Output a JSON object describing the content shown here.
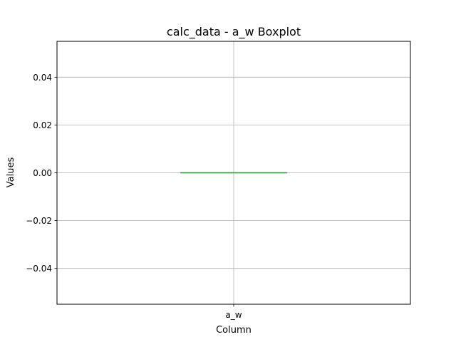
{
  "chart_data": {
    "type": "boxplot",
    "title": "calc_data - a_w Boxplot",
    "xlabel": "Column",
    "ylabel": "Values",
    "categories": [
      "a_w"
    ],
    "ylim": [
      -0.055,
      0.055
    ],
    "yticks": [
      -0.04,
      -0.02,
      0.0,
      0.02,
      0.04
    ],
    "ytick_labels": [
      "−0.04",
      "−0.02",
      "0.00",
      "0.02",
      "0.04"
    ],
    "grid": true,
    "boxes": [
      {
        "name": "a_w",
        "whisker_low": 0.0,
        "q1": 0.0,
        "median": 0.0,
        "q3": 0.0,
        "whisker_high": 0.0
      }
    ],
    "colors": {
      "box": "#1f77b4",
      "median": "#2ca02c",
      "whisker": "#000000",
      "grid": "#b0b0b0"
    }
  }
}
